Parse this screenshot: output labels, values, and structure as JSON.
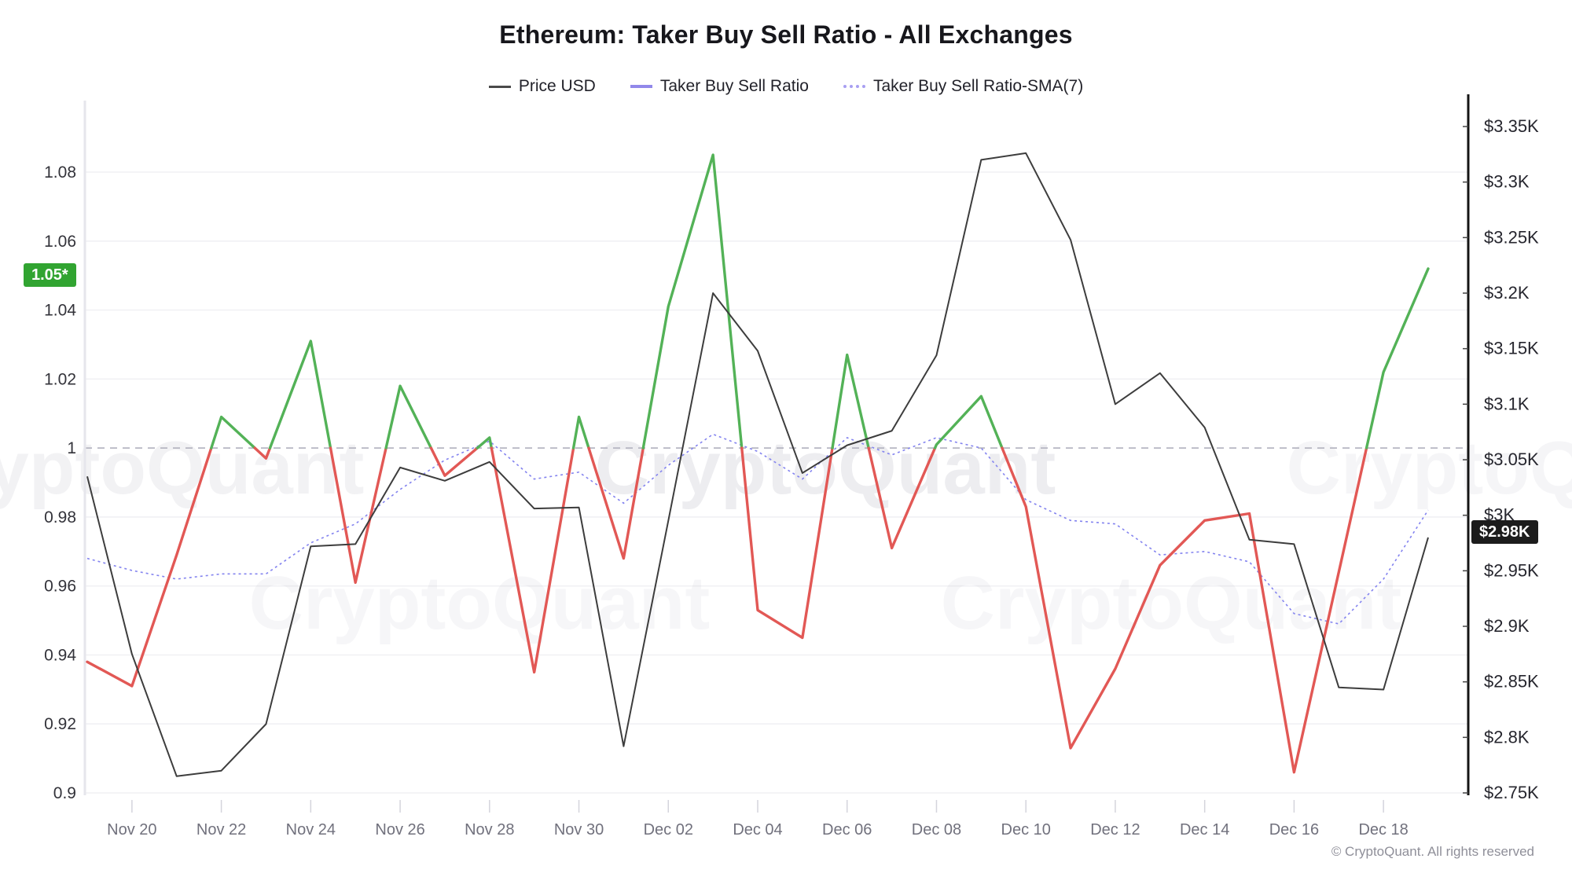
{
  "title": "Ethereum: Taker Buy Sell Ratio - All Exchanges",
  "legend": [
    {
      "label": "Price USD",
      "color": "#4a4a4a",
      "style": "solid"
    },
    {
      "label": "Taker Buy Sell Ratio",
      "color": "#9188ea",
      "style": "solid"
    },
    {
      "label": "Taker Buy Sell Ratio-SMA(7)",
      "color": "#a89ff2",
      "style": "dotted"
    }
  ],
  "badges": {
    "ratio_latest": {
      "text": "1.05*",
      "value": 1.05,
      "color": "#31a431"
    },
    "price_latest": {
      "text": "$2.98K",
      "value": 2.98,
      "color": "#1c1c1c"
    }
  },
  "watermark": "CryptoQuant",
  "copyright": "© CryptoQuant. All rights reserved",
  "chart_data": {
    "type": "line",
    "title": "Ethereum: Taker Buy Sell Ratio - All Exchanges",
    "x": [
      "Nov 19",
      "Nov 20",
      "Nov 21",
      "Nov 22",
      "Nov 23",
      "Nov 24",
      "Nov 25",
      "Nov 26",
      "Nov 27",
      "Nov 28",
      "Nov 29",
      "Nov 30",
      "Dec 01",
      "Dec 02",
      "Dec 03",
      "Dec 04",
      "Dec 05",
      "Dec 06",
      "Dec 07",
      "Dec 08",
      "Dec 09",
      "Dec 10",
      "Dec 11",
      "Dec 12",
      "Dec 13",
      "Dec 14",
      "Dec 15",
      "Dec 16",
      "Dec 17",
      "Dec 18",
      "Dec 19"
    ],
    "x_tick_labels": [
      "Nov 20",
      "Nov 22",
      "Nov 24",
      "Nov 26",
      "Nov 28",
      "Nov 30",
      "Dec 02",
      "Dec 04",
      "Dec 06",
      "Dec 08",
      "Dec 10",
      "Dec 12",
      "Dec 14",
      "Dec 16",
      "Dec 18"
    ],
    "series": [
      {
        "name": "Price USD",
        "axis": "right",
        "color": "#3d3d3d",
        "style": "solid",
        "values_usd_k": [
          3.035,
          2.875,
          2.765,
          2.77,
          2.812,
          2.972,
          2.974,
          3.043,
          3.031,
          3.048,
          3.006,
          3.007,
          2.792,
          2.995,
          3.2,
          3.148,
          3.038,
          3.063,
          3.076,
          3.144,
          3.32,
          3.326,
          3.248,
          3.1,
          3.128,
          3.079,
          2.978,
          2.974,
          2.845,
          2.843,
          2.98
        ]
      },
      {
        "name": "Taker Buy Sell Ratio",
        "axis": "left",
        "color_above_1": "#53b257",
        "color_below_1": "#e25855",
        "style": "solid",
        "values": [
          0.938,
          0.931,
          0.969,
          1.009,
          0.997,
          1.031,
          0.961,
          1.018,
          0.992,
          1.003,
          0.935,
          1.009,
          0.968,
          1.041,
          1.085,
          0.953,
          0.945,
          1.027,
          0.971,
          1.001,
          1.015,
          0.983,
          0.913,
          0.936,
          0.966,
          0.979,
          0.981,
          0.906,
          0.964,
          1.022,
          1.052
        ]
      },
      {
        "name": "Taker Buy Sell Ratio-SMA(7)",
        "axis": "left",
        "color": "#8383ef",
        "style": "dotted",
        "values": [
          0.968,
          0.9645,
          0.962,
          0.9635,
          0.9635,
          0.9725,
          0.978,
          0.988,
          0.9965,
          1.002,
          0.991,
          0.993,
          0.984,
          0.995,
          1.004,
          0.999,
          0.991,
          1.003,
          0.998,
          1.003,
          1.0,
          0.985,
          0.979,
          0.978,
          0.969,
          0.97,
          0.967,
          0.952,
          0.949,
          0.962,
          0.982
        ]
      }
    ],
    "left_axis": {
      "label": "",
      "ticks": [
        1.08,
        1.06,
        1.04,
        1.02,
        1,
        0.98,
        0.96,
        0.94,
        0.92,
        0.9
      ],
      "range": [
        0.895,
        1.095
      ],
      "reference_line": 1.0
    },
    "right_axis": {
      "label": "Price USD",
      "tick_labels": [
        "$3.35K",
        "$3.3K",
        "$3.25K",
        "$3.2K",
        "$3.15K",
        "$3.1K",
        "$3.05K",
        "$3K",
        "$2.95K",
        "$2.9K",
        "$2.85K",
        "$2.8K",
        "$2.75K"
      ],
      "tick_values": [
        3.35,
        3.3,
        3.25,
        3.2,
        3.15,
        3.1,
        3.05,
        3.0,
        2.95,
        2.9,
        2.85,
        2.8,
        2.75
      ]
    },
    "grid": "horizontal",
    "legend_position": "top"
  }
}
